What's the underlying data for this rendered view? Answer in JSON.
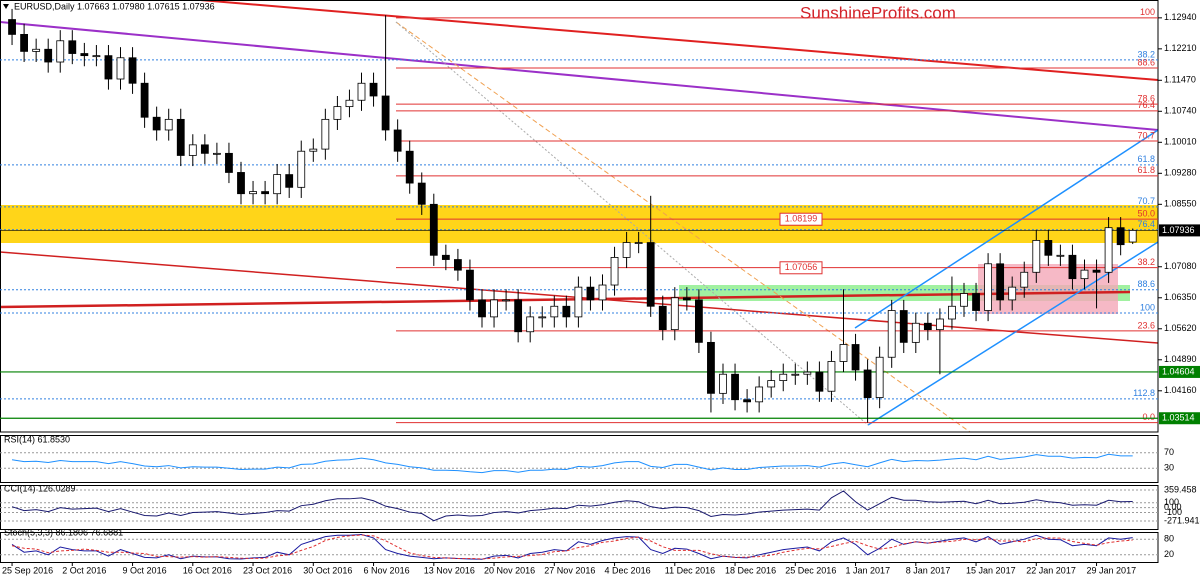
{
  "chart_data": [
    {
      "type": "candlestick",
      "title": "EURUSD,Daily  1.07663 1.07980 1.07615 1.07936",
      "watermark": "SunshineProfits.com",
      "open": [
        1.129,
        1.1255,
        1.1215,
        1.122,
        1.119,
        1.124,
        1.121,
        1.1205,
        1.1205,
        1.115,
        1.12,
        1.114,
        1.106,
        1.103,
        1.1055,
        1.097,
        1.0995,
        1.0975,
        1.0975,
        1.093,
        1.088,
        1.0885,
        1.088,
        1.0925,
        1.0895,
        1.098,
        1.0985,
        1.1055,
        1.1085,
        1.11,
        1.114,
        1.111,
        1.103,
        1.098,
        1.0905,
        1.0855,
        1.0735,
        1.0725,
        1.07,
        1.063,
        1.059,
        1.063,
        1.063,
        1.0555,
        1.059,
        1.059,
        1.0615,
        1.059,
        1.066,
        1.063,
        1.0665,
        1.073,
        1.0765,
        1.0765,
        1.0615,
        1.056,
        1.0635,
        1.063,
        1.053,
        1.041,
        1.0455,
        1.0395,
        1.039,
        1.0425,
        1.044,
        1.0455,
        1.0455,
        1.046,
        1.0415,
        1.0485,
        1.0525,
        1.0465,
        1.04,
        1.0495,
        1.0605,
        1.053,
        1.0575,
        1.056,
        1.0585,
        1.0615,
        1.0645,
        1.0605,
        1.0715,
        1.063,
        1.066,
        1.0695,
        1.077,
        1.0735,
        1.0735,
        1.068,
        1.07,
        1.0695,
        1.08,
        1.07663
      ],
      "high": [
        1.1315,
        1.128,
        1.1245,
        1.1245,
        1.1265,
        1.1265,
        1.1235,
        1.123,
        1.123,
        1.1225,
        1.1225,
        1.1165,
        1.1085,
        1.108,
        1.108,
        1.102,
        1.102,
        1.1,
        1.1,
        1.0955,
        1.091,
        1.091,
        1.095,
        1.095,
        1.1005,
        1.101,
        1.108,
        1.111,
        1.1125,
        1.1165,
        1.1165,
        1.13,
        1.1055,
        1.1005,
        1.093,
        1.088,
        1.076,
        1.075,
        1.0725,
        1.0655,
        1.0655,
        1.0655,
        1.0655,
        1.0615,
        1.0615,
        1.064,
        1.064,
        1.0685,
        1.0685,
        1.069,
        1.0755,
        1.079,
        1.079,
        1.0875,
        1.064,
        1.066,
        1.066,
        1.0655,
        1.0555,
        1.048,
        1.048,
        1.042,
        1.045,
        1.0465,
        1.048,
        1.048,
        1.0485,
        1.0485,
        1.051,
        1.0655,
        1.055,
        1.049,
        1.052,
        1.063,
        1.063,
        1.06,
        1.06,
        1.061,
        1.0685,
        1.067,
        1.067,
        1.074,
        1.074,
        1.0685,
        1.072,
        1.0795,
        1.0795,
        1.076,
        1.076,
        1.0725,
        1.0725,
        1.0825,
        1.0825,
        1.0798
      ],
      "low": [
        1.123,
        1.119,
        1.119,
        1.1165,
        1.1165,
        1.1185,
        1.118,
        1.118,
        1.1125,
        1.1125,
        1.1115,
        1.1035,
        1.1005,
        1.1005,
        1.0945,
        1.0945,
        1.095,
        1.095,
        1.0905,
        1.0855,
        1.0855,
        1.0855,
        1.0855,
        1.087,
        1.087,
        1.0955,
        1.096,
        1.103,
        1.106,
        1.1075,
        1.1085,
        1.1005,
        1.0955,
        1.088,
        1.083,
        1.071,
        1.07,
        1.0675,
        1.0605,
        1.0565,
        1.0565,
        1.0605,
        1.053,
        1.053,
        1.0565,
        1.0565,
        1.0565,
        1.0565,
        1.0605,
        1.0605,
        1.064,
        1.0705,
        1.074,
        1.059,
        1.0535,
        1.0535,
        1.0605,
        1.0505,
        1.0365,
        1.0385,
        1.037,
        1.0365,
        1.0365,
        1.04,
        1.0415,
        1.043,
        1.043,
        1.039,
        1.039,
        1.046,
        1.044,
        1.0341,
        1.0375,
        1.047,
        1.0505,
        1.0505,
        1.0535,
        1.0455,
        1.056,
        1.059,
        1.058,
        1.058,
        1.0605,
        1.0605,
        1.0635,
        1.067,
        1.071,
        1.071,
        1.0655,
        1.0655,
        1.061,
        1.067,
        1.0735,
        1.07615
      ],
      "close": [
        1.1255,
        1.1215,
        1.122,
        1.119,
        1.124,
        1.121,
        1.1205,
        1.1205,
        1.115,
        1.12,
        1.114,
        1.106,
        1.103,
        1.1055,
        1.097,
        1.0995,
        1.0975,
        1.0975,
        1.093,
        1.088,
        1.0885,
        1.088,
        1.0925,
        1.0895,
        1.098,
        1.0985,
        1.1055,
        1.1085,
        1.11,
        1.114,
        1.111,
        1.103,
        1.098,
        1.0905,
        1.0855,
        1.0735,
        1.0725,
        1.07,
        1.063,
        1.059,
        1.063,
        1.063,
        1.0555,
        1.059,
        1.059,
        1.0615,
        1.059,
        1.066,
        1.063,
        1.0665,
        1.073,
        1.0765,
        1.0765,
        1.0615,
        1.056,
        1.0635,
        1.063,
        1.053,
        1.041,
        1.0455,
        1.0395,
        1.039,
        1.0425,
        1.044,
        1.0455,
        1.0455,
        1.046,
        1.0415,
        1.0485,
        1.0525,
        1.0465,
        1.04,
        1.0495,
        1.0605,
        1.053,
        1.0575,
        1.056,
        1.0585,
        1.0615,
        1.0645,
        1.0605,
        1.0715,
        1.063,
        1.066,
        1.0695,
        1.077,
        1.0735,
        1.0735,
        1.068,
        1.07,
        1.0695,
        1.08,
        1.076,
        1.07936
      ],
      "up_color": "#ffffff",
      "down_color": "#000000",
      "xlim": [
        -1,
        95.1
      ],
      "ylim": [
        1.0319,
        1.1336
      ],
      "xticks": [
        {
          "value": 0,
          "label": "25 Sep 2016"
        },
        {
          "value": 5,
          "label": "2 Oct 2016"
        },
        {
          "value": 10,
          "label": "9 Oct 2016"
        },
        {
          "value": 15,
          "label": "16 Oct 2016"
        },
        {
          "value": 20,
          "label": "23 Oct 2016"
        },
        {
          "value": 25,
          "label": "30 Oct 2016"
        },
        {
          "value": 30,
          "label": "6 Nov 2016"
        },
        {
          "value": 35,
          "label": "13 Nov 2016"
        },
        {
          "value": 40,
          "label": "20 Nov 2016"
        },
        {
          "value": 45,
          "label": "27 Nov 2016"
        },
        {
          "value": 50,
          "label": "4 Dec 2016"
        },
        {
          "value": 55,
          "label": "11 Dec 2016"
        },
        {
          "value": 60,
          "label": "18 Dec 2016"
        },
        {
          "value": 65,
          "label": "25 Dec 2016"
        },
        {
          "value": 70,
          "label": "1 Jan 2017"
        },
        {
          "value": 75,
          "label": "8 Jan 2017"
        },
        {
          "value": 80,
          "label": "15 Jan 2017"
        },
        {
          "value": 85,
          "label": "22 Jan 2017"
        },
        {
          "value": 90,
          "label": "29 Jan 2017"
        }
      ],
      "yticks": [
        {
          "value": 1.1294,
          "label": "1.12940"
        },
        {
          "value": 1.1221,
          "label": "1.12210"
        },
        {
          "value": 1.1147,
          "label": "1.11470"
        },
        {
          "value": 1.1074,
          "label": "1.10740"
        },
        {
          "value": 1.1001,
          "label": "1.10010"
        },
        {
          "value": 1.0928,
          "label": "1.09280"
        },
        {
          "value": 1.0855,
          "label": "1.08550"
        },
        {
          "value": 1.0708,
          "label": "1.07080"
        },
        {
          "value": 1.0635,
          "label": "1.06350"
        },
        {
          "value": 1.0562,
          "label": "1.05620"
        },
        {
          "value": 1.0489,
          "label": "1.04890"
        },
        {
          "value": 1.0416,
          "label": "1.04160"
        }
      ],
      "price_markers": [
        {
          "value": 1.07936,
          "label": "1.07936",
          "color": "#000000"
        },
        {
          "value": 1.04604,
          "label": "1.04604",
          "color": "#008000"
        },
        {
          "value": 1.03514,
          "label": "1.03514",
          "color": "#008000"
        }
      ],
      "level_labels": [
        {
          "value": 1.08199,
          "label": "1.08199"
        },
        {
          "value": 1.07056,
          "label": "1.07056"
        }
      ],
      "fib_levels": [
        {
          "label": "100",
          "value": 1.1294,
          "color": "#e03030",
          "dashed": false
        },
        {
          "label": "88.6",
          "value": 1.1176,
          "color": "#e03030",
          "dashed": false
        },
        {
          "label": "78.6",
          "value": 1.1091,
          "color": "#e03030",
          "dashed": false
        },
        {
          "label": "76.4",
          "value": 1.1075,
          "color": "#e03030",
          "dashed": false
        },
        {
          "label": "70.7",
          "value": 1.1004,
          "color": "#e03030",
          "dashed": false
        },
        {
          "label": "61.8",
          "value": 1.0922,
          "color": "#e03030",
          "dashed": false
        },
        {
          "label": "50.0",
          "value": 1.082,
          "color": "#e03030",
          "dashed": false
        },
        {
          "label": "38.2",
          "value": 1.0706,
          "color": "#e03030",
          "dashed": false
        },
        {
          "label": "23.6",
          "value": 1.0557,
          "color": "#e03030",
          "dashed": false
        },
        {
          "label": "0.0",
          "value": 1.0341,
          "color": "#e03030",
          "dashed": false
        },
        {
          "label": "38.2",
          "value": 1.1195,
          "color": "#3080e0",
          "dashed": true
        },
        {
          "label": "61.8",
          "value": 1.0948,
          "color": "#3080e0",
          "dashed": true
        },
        {
          "label": "70.7",
          "value": 1.0849,
          "color": "#3080e0",
          "dashed": true
        },
        {
          "label": "76.4",
          "value": 1.0795,
          "color": "#3080e0",
          "dashed": true
        },
        {
          "label": "88.6",
          "value": 1.0654,
          "color": "#3080e0",
          "dashed": true
        },
        {
          "label": "100",
          "value": 1.0599,
          "color": "#3080e0",
          "dashed": true
        },
        {
          "label": "112.8",
          "value": 1.0397,
          "color": "#3080e0",
          "dashed": true
        }
      ]
    },
    {
      "type": "line",
      "title": "RSI(14) 61.8530",
      "ylim": [
        0,
        100
      ],
      "yticks": [
        70,
        30
      ],
      "series": [
        {
          "color": "#1e90ff",
          "dashed": false,
          "values": [
            52,
            47,
            48,
            45,
            50,
            47,
            47,
            47,
            42,
            47,
            42,
            36,
            34,
            37,
            31,
            34,
            33,
            33,
            30,
            27,
            28,
            28,
            33,
            31,
            40,
            41,
            48,
            51,
            52,
            56,
            52,
            44,
            40,
            34,
            31,
            25,
            25,
            24,
            21,
            19,
            24,
            24,
            20,
            25,
            25,
            28,
            27,
            35,
            33,
            37,
            44,
            47,
            47,
            35,
            32,
            40,
            40,
            33,
            26,
            31,
            27,
            27,
            32,
            34,
            36,
            36,
            37,
            33,
            41,
            45,
            39,
            34,
            44,
            53,
            47,
            50,
            49,
            51,
            54,
            56,
            52,
            61,
            53,
            56,
            59,
            65,
            61,
            61,
            56,
            58,
            57,
            66,
            62,
            61.853
          ]
        }
      ]
    },
    {
      "type": "line",
      "title": "CCI(14) 126.0289",
      "ylim": [
        -271.9418,
        359.458
      ],
      "yticks": [
        359.458,
        100,
        {
          "value": 0,
          "label": "0.00"
        },
        -100,
        -271.9418
      ],
      "series": [
        {
          "color": "#191970",
          "dashed": false,
          "values": [
            20,
            -60,
            -40,
            -80,
            0,
            -30,
            -20,
            -10,
            -80,
            -20,
            -90,
            -160,
            -170,
            -110,
            -160,
            -100,
            -90,
            -80,
            -110,
            -140,
            -120,
            -100,
            -60,
            -70,
            40,
            70,
            140,
            180,
            180,
            200,
            140,
            30,
            -20,
            -90,
            -120,
            -265,
            -170,
            -150,
            -170,
            -160,
            -100,
            -80,
            -110,
            -60,
            -40,
            -10,
            -20,
            50,
            30,
            60,
            110,
            140,
            120,
            20,
            -20,
            10,
            0,
            -60,
            -180,
            -140,
            -150,
            -130,
            -90,
            -70,
            -50,
            -40,
            -30,
            -50,
            200,
            340,
            120,
            -50,
            80,
            210,
            150,
            150,
            120,
            110,
            120,
            130,
            80,
            150,
            80,
            90,
            110,
            160,
            120,
            100,
            50,
            60,
            50,
            150,
            120,
            126.0289
          ]
        }
      ]
    },
    {
      "type": "line",
      "title": "Stoch(5,3,3) 86.1806 76.6881",
      "ylim": [
        0,
        100
      ],
      "yticks": [
        80,
        20
      ],
      "series": [
        {
          "color": "#1a1aa0",
          "dashed": false,
          "values": [
            60,
            30,
            35,
            20,
            50,
            40,
            35,
            35,
            15,
            40,
            25,
            10,
            8,
            20,
            5,
            15,
            12,
            12,
            5,
            4,
            8,
            10,
            30,
            20,
            60,
            75,
            90,
            95,
            95,
            98,
            85,
            40,
            25,
            15,
            10,
            5,
            8,
            6,
            4,
            3,
            15,
            18,
            8,
            25,
            30,
            40,
            35,
            70,
            60,
            75,
            85,
            90,
            88,
            40,
            25,
            45,
            42,
            25,
            5,
            15,
            10,
            8,
            20,
            30,
            40,
            45,
            50,
            35,
            70,
            85,
            60,
            20,
            45,
            80,
            60,
            70,
            65,
            72,
            80,
            85,
            70,
            90,
            60,
            70,
            80,
            95,
            80,
            78,
            55,
            60,
            55,
            85,
            80,
            86.1806
          ]
        },
        {
          "color": "#e03030",
          "dashed": true,
          "values": [
            55,
            45,
            42,
            28,
            35,
            37,
            42,
            37,
            30,
            30,
            27,
            25,
            14,
            13,
            11,
            13,
            11,
            13,
            10,
            7,
            6,
            7,
            16,
            20,
            37,
            52,
            75,
            87,
            93,
            96,
            93,
            74,
            50,
            27,
            17,
            10,
            8,
            6,
            6,
            4,
            7,
            12,
            14,
            17,
            21,
            32,
            35,
            48,
            55,
            68,
            73,
            83,
            88,
            73,
            51,
            37,
            37,
            37,
            24,
            15,
            10,
            11,
            13,
            19,
            30,
            38,
            45,
            43,
            52,
            63,
            72,
            55,
            42,
            48,
            62,
            70,
            65,
            69,
            72,
            79,
            78,
            82,
            73,
            73,
            70,
            82,
            85,
            84,
            71,
            64,
            57,
            67,
            73,
            76.6881
          ]
        }
      ]
    }
  ]
}
